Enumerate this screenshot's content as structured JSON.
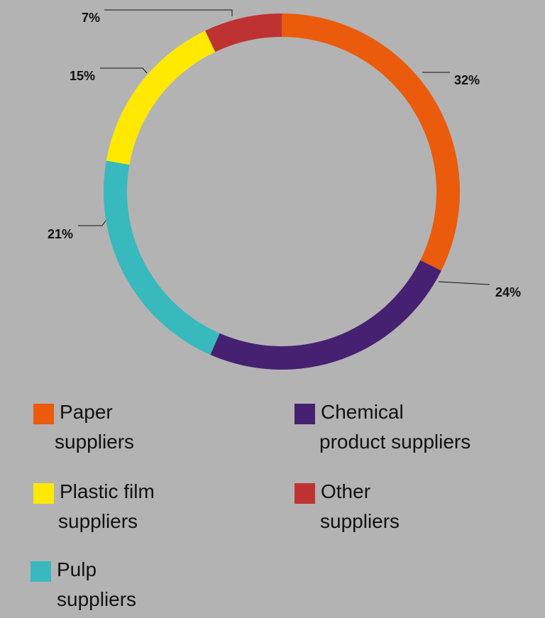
{
  "chart_data": {
    "type": "pie",
    "variant": "donut",
    "start_angle_deg": 0,
    "direction": "clockwise",
    "slices": [
      {
        "label": "Paper suppliers",
        "value": 32,
        "display": "32%",
        "color": "#ea5b0c"
      },
      {
        "label": "Chemical product suppliers",
        "value": 24,
        "display": "24%",
        "color": "#462172"
      },
      {
        "label": "Pulp suppliers",
        "value": 21,
        "display": "21%",
        "color": "#38b9bd"
      },
      {
        "label": "Plastic film suppliers",
        "value": 15,
        "display": "15%",
        "color": "#ffe900"
      },
      {
        "label": "Other suppliers",
        "value": 7,
        "display": "7%",
        "color": "#be3232"
      }
    ]
  },
  "legend": [
    {
      "line1": "Paper",
      "line2": "suppliers",
      "color": "#ea5b0c"
    },
    {
      "line1": "Chemical",
      "line2": "product suppliers",
      "color": "#462172"
    },
    {
      "line1": "Plastic film",
      "line2": "suppliers",
      "color": "#ffe900"
    },
    {
      "line1": "Other",
      "line2": "suppliers",
      "color": "#be3232"
    },
    {
      "line1": "Pulp",
      "line2": "suppliers",
      "color": "#38b9bd"
    }
  ]
}
